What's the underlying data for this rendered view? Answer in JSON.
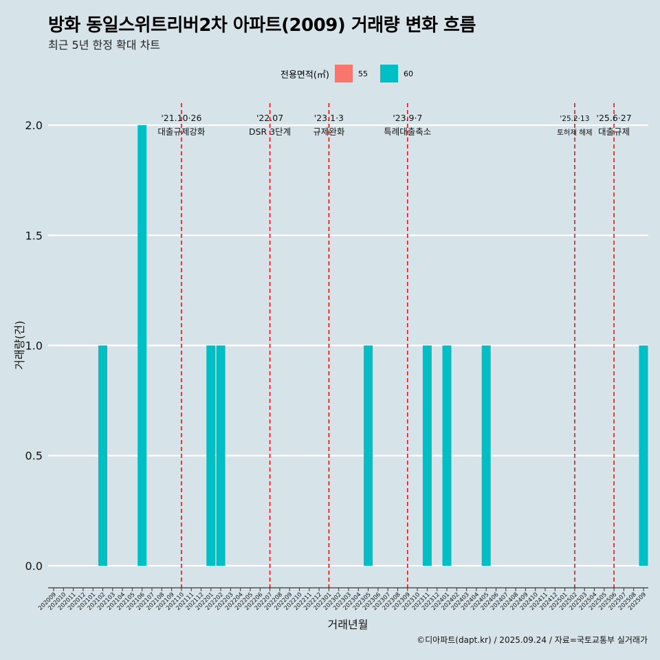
{
  "title": "방화 동일스위트리버2차 아파트(2009) 거래량 변화 흐름",
  "subtitle": "최근 5년 한정 확대 차트",
  "legend": {
    "title": "전용면적(㎡)",
    "items": [
      {
        "label": "55",
        "color": "#f8766d"
      },
      {
        "label": "60",
        "color": "#00bfc4"
      }
    ]
  },
  "footer": "©디아파트(dapt.kr) / 2025.09.24 / 자료=국토교통부 실거래가",
  "chart_data": {
    "type": "bar",
    "title": "방화 동일스위트리버2차 아파트(2009) 거래량 변화 흐름",
    "xlabel": "거래년월",
    "ylabel": "거래량(건)",
    "ylim": [
      -0.1,
      2.1
    ],
    "yticks": [
      0.0,
      0.5,
      1.0,
      1.5,
      2.0
    ],
    "ytick_labels": [
      "0.0",
      "0.5",
      "1.0",
      "1.5",
      "2.0"
    ],
    "categories": [
      "202009",
      "202010",
      "202011",
      "202012",
      "202101",
      "202102",
      "202103",
      "202104",
      "202105",
      "202106",
      "202107",
      "202108",
      "202109",
      "202110",
      "202111",
      "202112",
      "202201",
      "202202",
      "202203",
      "202204",
      "202205",
      "202206",
      "202207",
      "202208",
      "202209",
      "202210",
      "202211",
      "202212",
      "202301",
      "202302",
      "202303",
      "202304",
      "202305",
      "202306",
      "202307",
      "202308",
      "202309",
      "202310",
      "202311",
      "202312",
      "202401",
      "202402",
      "202403",
      "202404",
      "202405",
      "202406",
      "202407",
      "202408",
      "202409",
      "202410",
      "202411",
      "202412",
      "202501",
      "202502",
      "202503",
      "202504",
      "202505",
      "202506",
      "202507",
      "202508",
      "202509"
    ],
    "series": [
      {
        "name": "55",
        "color": "#f8766d",
        "values": [
          0,
          0,
          0,
          0,
          0,
          0,
          0,
          0,
          0,
          0,
          0,
          0,
          0,
          0,
          0,
          0,
          0,
          0,
          0,
          0,
          0,
          0,
          0,
          0,
          0,
          0,
          0,
          0,
          0,
          0,
          0,
          0,
          0,
          0,
          0,
          0,
          0,
          0,
          0,
          0,
          0,
          0,
          0,
          0,
          0,
          0,
          0,
          0,
          0,
          0,
          0,
          0,
          0,
          0,
          0,
          0,
          0,
          0,
          0,
          0,
          0
        ]
      },
      {
        "name": "60",
        "color": "#00bfc4",
        "values": [
          0,
          0,
          0,
          0,
          0,
          1,
          0,
          0,
          0,
          2,
          0,
          0,
          0,
          0,
          0,
          0,
          1,
          1,
          0,
          0,
          0,
          0,
          0,
          0,
          0,
          0,
          0,
          0,
          0,
          0,
          0,
          0,
          1,
          0,
          0,
          0,
          0,
          0,
          1,
          0,
          1,
          0,
          0,
          0,
          1,
          0,
          0,
          0,
          0,
          0,
          0,
          0,
          0,
          0,
          0,
          0,
          0,
          0,
          0,
          0,
          1
        ]
      }
    ],
    "events": [
      {
        "date": "'21.10·26",
        "label": "대출규제강화",
        "x": 13.0
      },
      {
        "date": "'22.07",
        "label": "DSR 3단계",
        "x": 22.0
      },
      {
        "date": "'23.1·3",
        "label": "규제완화",
        "x": 28.0
      },
      {
        "date": "'23.9·7",
        "label": "특례대출축소",
        "x": 36.0
      },
      {
        "date": "'25.2·13",
        "label": "토허제 해제",
        "x": 53.0
      },
      {
        "date": "'25.6·27",
        "label": "대출규제",
        "x": 57.0
      }
    ],
    "legend_position": "top",
    "grid": true
  }
}
